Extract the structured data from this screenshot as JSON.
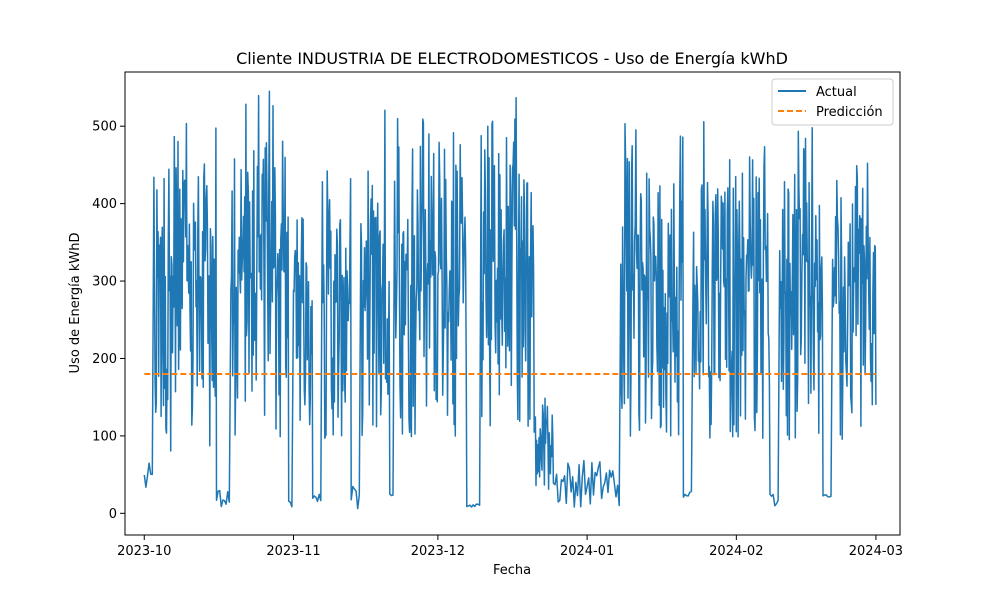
{
  "chart_data": {
    "type": "line",
    "title": "Cliente INDUSTRIA DE ELECTRODOMESTICOS - Uso de Energía kWhD",
    "xlabel": "Fecha",
    "ylabel": "Uso de Energía kWhD",
    "xlim": [
      "2023-09-27",
      "2024-03-06"
    ],
    "ylim": [
      -28,
      570
    ],
    "x_ticks": [
      "2023-10",
      "2023-11",
      "2023-12",
      "2024-01",
      "2024-02",
      "2024-03"
    ],
    "y_ticks": [
      "0",
      "100",
      "200",
      "300",
      "400",
      "500"
    ],
    "grid": false,
    "legend_position": "top-right",
    "series": [
      {
        "name": "Actual",
        "color": "#1f77b4",
        "style": "solid",
        "x_start": "2023-10-01",
        "x_end": "2024-03-01",
        "approximate_daily_range": [
          {
            "from": "2023-10-01",
            "to": "2023-10-03",
            "min": 20,
            "max": 65
          },
          {
            "from": "2023-10-03",
            "to": "2023-10-16",
            "min": 40,
            "max": 527
          },
          {
            "from": "2023-10-16",
            "to": "2023-10-19",
            "min": 8,
            "max": 30
          },
          {
            "from": "2023-10-19",
            "to": "2023-10-31",
            "min": 55,
            "max": 547
          },
          {
            "from": "2023-10-31",
            "to": "2023-11-01",
            "min": 8,
            "max": 20
          },
          {
            "from": "2023-11-01",
            "to": "2023-11-05",
            "min": 60,
            "max": 465
          },
          {
            "from": "2023-11-05",
            "to": "2023-11-07",
            "min": 15,
            "max": 25
          },
          {
            "from": "2023-11-07",
            "to": "2023-11-13",
            "min": 65,
            "max": 450
          },
          {
            "from": "2023-11-13",
            "to": "2023-11-15",
            "min": 0,
            "max": 35
          },
          {
            "from": "2023-11-15",
            "to": "2023-11-21",
            "min": 60,
            "max": 530
          },
          {
            "from": "2023-11-21",
            "to": "2023-11-22",
            "min": 18,
            "max": 25
          },
          {
            "from": "2023-11-22",
            "to": "2023-12-07",
            "min": 60,
            "max": 510
          },
          {
            "from": "2023-12-07",
            "to": "2023-12-10",
            "min": 8,
            "max": 12
          },
          {
            "from": "2023-12-10",
            "to": "2023-12-21",
            "min": 60,
            "max": 547
          },
          {
            "from": "2023-12-21",
            "to": "2023-12-25",
            "min": 20,
            "max": 150
          },
          {
            "from": "2023-12-25",
            "to": "2024-01-08",
            "min": 8,
            "max": 70
          },
          {
            "from": "2024-01-08",
            "to": "2024-01-21",
            "min": 60,
            "max": 507
          },
          {
            "from": "2024-01-21",
            "to": "2024-01-23",
            "min": 20,
            "max": 30
          },
          {
            "from": "2024-01-23",
            "to": "2024-02-08",
            "min": 60,
            "max": 507
          },
          {
            "from": "2024-02-08",
            "to": "2024-02-10",
            "min": 8,
            "max": 25
          },
          {
            "from": "2024-02-10",
            "to": "2024-02-19",
            "min": 55,
            "max": 504
          },
          {
            "from": "2024-02-19",
            "to": "2024-02-21",
            "min": 18,
            "max": 25
          },
          {
            "from": "2024-02-21",
            "to": "2024-03-01",
            "min": 60,
            "max": 460
          }
        ]
      },
      {
        "name": "Predicción",
        "color": "#ff7f0e",
        "style": "dashed",
        "x": [
          "2023-10-01",
          "2024-03-01"
        ],
        "values": [
          180,
          180
        ]
      }
    ]
  }
}
